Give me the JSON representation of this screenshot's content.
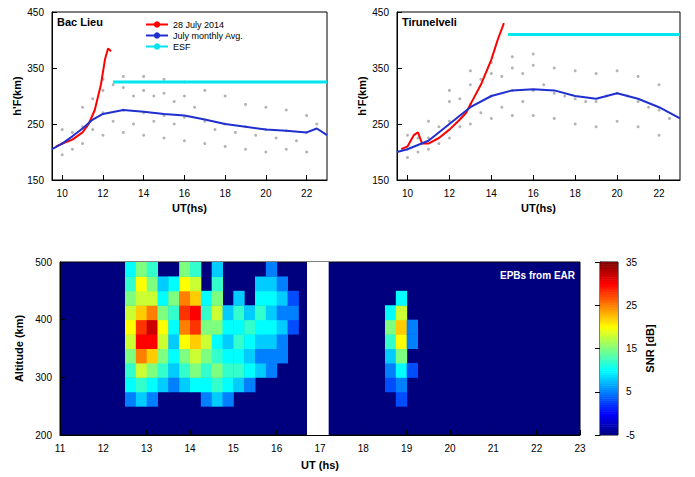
{
  "chart_data": [
    {
      "type": "line",
      "title": "Bac Lieu",
      "xlabel": "UT(hs)",
      "ylabel": "h'F(km)",
      "xlim": [
        9.5,
        23
      ],
      "xticks": [
        10,
        12,
        14,
        16,
        18,
        20,
        22
      ],
      "ylim": [
        150,
        450
      ],
      "yticks": [
        150,
        250,
        350,
        450
      ],
      "grid": false,
      "legend": "top",
      "series": [
        {
          "type": "scatter",
          "color": "#a0a0a0",
          "marker": "dot",
          "x": [
            10,
            10,
            10,
            10.5,
            10.5,
            11,
            11,
            11,
            11.5,
            11.5,
            12,
            12,
            12,
            12,
            12.5,
            12.5,
            13,
            13,
            13,
            13,
            13.5,
            13.5,
            14,
            14,
            14,
            14,
            14.5,
            14.5,
            15,
            15,
            15,
            15,
            15.5,
            15.5,
            16,
            16,
            16,
            16,
            16.5,
            17,
            17,
            17,
            17.5,
            18,
            18,
            18,
            18.5,
            19,
            19,
            19,
            19.5,
            20,
            20,
            20,
            20.5,
            21,
            21,
            21,
            21.5,
            22,
            22,
            22,
            22.5
          ],
          "values": [
            195,
            215,
            240,
            205,
            235,
            215,
            245,
            280,
            240,
            295,
            230,
            270,
            310,
            330,
            255,
            320,
            235,
            275,
            315,
            335,
            250,
            300,
            230,
            270,
            310,
            335,
            255,
            300,
            225,
            265,
            305,
            330,
            250,
            290,
            220,
            262,
            300,
            325,
            280,
            215,
            255,
            310,
            240,
            210,
            250,
            300,
            235,
            205,
            245,
            285,
            230,
            200,
            240,
            280,
            225,
            205,
            238,
            275,
            220,
            200,
            235,
            265,
            250
          ]
        },
        {
          "type": "line",
          "name": "28 July 2014",
          "color": "#ff0000",
          "line_style": "solid",
          "x": [
            9.7,
            10,
            10.5,
            11,
            11.3,
            11.6,
            11.9,
            12.1,
            12.25,
            12.4
          ],
          "values": [
            210,
            215,
            222,
            235,
            250,
            275,
            320,
            365,
            385,
            380
          ]
        },
        {
          "type": "line",
          "name": "July monthly Avg.",
          "color": "#1f2fd0",
          "line_style": "solid",
          "x": [
            9.5,
            10,
            10.5,
            11,
            11.5,
            12,
            13,
            14,
            15,
            16,
            17,
            18,
            19,
            20,
            21,
            22,
            22.5,
            23
          ],
          "values": [
            205,
            215,
            228,
            242,
            258,
            268,
            275,
            272,
            268,
            265,
            258,
            250,
            245,
            240,
            238,
            235,
            242,
            230
          ]
        },
        {
          "type": "line",
          "name": "ESF",
          "color": "#00e5ee",
          "line_style": "solid",
          "x": [
            12.5,
            23
          ],
          "values": [
            325,
            325
          ]
        }
      ]
    },
    {
      "type": "line",
      "title": "Tirunelveli",
      "xlabel": "UT(hs)",
      "ylabel": "h'F(km)",
      "xlim": [
        9.5,
        23
      ],
      "xticks": [
        10,
        12,
        14,
        16,
        18,
        20,
        22
      ],
      "ylim": [
        150,
        450
      ],
      "yticks": [
        150,
        250,
        350,
        450
      ],
      "grid": false,
      "series": [
        {
          "type": "scatter",
          "color": "#a0a0a0",
          "marker": "dot",
          "x": [
            10,
            10,
            10,
            10.5,
            10.5,
            11,
            11,
            11,
            11.5,
            11.5,
            12,
            12,
            12,
            12,
            12.5,
            12.5,
            13,
            13,
            13,
            13,
            13.5,
            13.5,
            14,
            14,
            14,
            14,
            14.5,
            14.5,
            15,
            15,
            15,
            15,
            15.5,
            15.5,
            16,
            16,
            16,
            16,
            16.5,
            17,
            17,
            17,
            17.5,
            18,
            18,
            18,
            18.5,
            19,
            19,
            19,
            19.5,
            20,
            20,
            20,
            20.5,
            21,
            21,
            21,
            21.5,
            22,
            22,
            22,
            22.5
          ],
          "values": [
            190,
            205,
            230,
            200,
            225,
            205,
            225,
            255,
            215,
            245,
            225,
            255,
            290,
            310,
            245,
            295,
            250,
            285,
            320,
            345,
            270,
            330,
            260,
            300,
            340,
            360,
            280,
            335,
            265,
            310,
            350,
            370,
            290,
            340,
            265,
            310,
            355,
            375,
            320,
            260,
            305,
            350,
            300,
            250,
            295,
            345,
            290,
            245,
            290,
            340,
            300,
            255,
            305,
            345,
            300,
            245,
            290,
            335,
            280,
            230,
            275,
            320,
            260
          ]
        },
        {
          "type": "line",
          "name": "28 July 2014",
          "color": "#ff0000",
          "line_style": "solid",
          "x": [
            9.7,
            10,
            10.3,
            10.5,
            10.7,
            11,
            11.5,
            12,
            12.5,
            12.8,
            13,
            13.5,
            14,
            14.3,
            14.6
          ],
          "values": [
            205,
            210,
            230,
            235,
            215,
            215,
            225,
            240,
            258,
            270,
            285,
            320,
            365,
            400,
            430
          ]
        },
        {
          "type": "line",
          "name": "July monthly Avg.",
          "color": "#1f2fd0",
          "line_style": "solid",
          "x": [
            9.5,
            10,
            11,
            12,
            13,
            14,
            15,
            16,
            17,
            18,
            19,
            20,
            21,
            22,
            23
          ],
          "values": [
            200,
            205,
            220,
            250,
            280,
            300,
            310,
            312,
            310,
            300,
            295,
            305,
            295,
            280,
            260
          ]
        },
        {
          "type": "line",
          "name": "ESF",
          "color": "#00e5ee",
          "line_style": "solid",
          "x": [
            14.8,
            23
          ],
          "values": [
            410,
            410
          ]
        }
      ]
    },
    {
      "type": "heatmap",
      "annotation": "EPBs from EAR",
      "xlabel": "UT (hs)",
      "ylabel": "Altitude (km)",
      "xlim": [
        11,
        23
      ],
      "xticks": [
        11,
        12,
        13,
        14,
        15,
        16,
        17,
        18,
        19,
        20,
        21,
        22,
        23
      ],
      "ylim": [
        200,
        500
      ],
      "yticks": [
        200,
        300,
        400,
        500
      ],
      "cell_size": [
        0.25,
        25
      ],
      "no_data": [
        16.7,
        17.2
      ],
      "cells": [
        [
          12.5,
          250,
          5
        ],
        [
          12.5,
          275,
          10
        ],
        [
          12.5,
          300,
          12
        ],
        [
          12.5,
          325,
          15
        ],
        [
          12.5,
          350,
          18
        ],
        [
          12.5,
          375,
          20
        ],
        [
          12.5,
          400,
          18
        ],
        [
          12.5,
          425,
          15
        ],
        [
          12.5,
          450,
          12
        ],
        [
          12.5,
          475,
          10
        ],
        [
          12.75,
          250,
          8
        ],
        [
          12.75,
          275,
          12
        ],
        [
          12.75,
          300,
          18
        ],
        [
          12.75,
          325,
          25
        ],
        [
          12.75,
          350,
          30
        ],
        [
          12.75,
          375,
          28
        ],
        [
          12.75,
          400,
          22
        ],
        [
          12.75,
          425,
          18
        ],
        [
          12.75,
          450,
          20
        ],
        [
          12.75,
          475,
          15
        ],
        [
          13,
          250,
          5
        ],
        [
          13,
          275,
          10
        ],
        [
          13,
          300,
          15
        ],
        [
          13,
          325,
          22
        ],
        [
          13,
          350,
          30
        ],
        [
          13,
          375,
          32
        ],
        [
          13,
          400,
          25
        ],
        [
          13,
          425,
          18
        ],
        [
          13,
          450,
          15
        ],
        [
          13,
          475,
          12
        ],
        [
          13.25,
          275,
          8
        ],
        [
          13.25,
          300,
          12
        ],
        [
          13.25,
          325,
          15
        ],
        [
          13.25,
          350,
          18
        ],
        [
          13.25,
          375,
          20
        ],
        [
          13.25,
          400,
          15
        ],
        [
          13.25,
          425,
          10
        ],
        [
          13.25,
          450,
          8
        ],
        [
          13.5,
          275,
          5
        ],
        [
          13.5,
          300,
          8
        ],
        [
          13.5,
          325,
          10
        ],
        [
          13.5,
          350,
          8
        ],
        [
          13.5,
          375,
          10
        ],
        [
          13.5,
          400,
          12
        ],
        [
          13.5,
          425,
          15
        ],
        [
          13.5,
          450,
          10
        ],
        [
          13.75,
          275,
          8
        ],
        [
          13.75,
          300,
          12
        ],
        [
          13.75,
          325,
          15
        ],
        [
          13.75,
          350,
          20
        ],
        [
          13.75,
          375,
          25
        ],
        [
          13.75,
          400,
          28
        ],
        [
          13.75,
          425,
          25
        ],
        [
          13.75,
          450,
          20
        ],
        [
          13.75,
          475,
          15
        ],
        [
          14,
          275,
          10
        ],
        [
          14,
          300,
          15
        ],
        [
          14,
          325,
          18
        ],
        [
          14,
          350,
          22
        ],
        [
          14,
          375,
          28
        ],
        [
          14,
          400,
          30
        ],
        [
          14,
          425,
          22
        ],
        [
          14,
          450,
          18
        ],
        [
          14,
          475,
          12
        ],
        [
          14.25,
          250,
          5
        ],
        [
          14.25,
          275,
          10
        ],
        [
          14.25,
          300,
          12
        ],
        [
          14.25,
          325,
          15
        ],
        [
          14.25,
          350,
          18
        ],
        [
          14.25,
          375,
          15
        ],
        [
          14.25,
          400,
          12
        ],
        [
          14.25,
          425,
          10
        ],
        [
          14.5,
          250,
          8
        ],
        [
          14.5,
          275,
          12
        ],
        [
          14.5,
          300,
          15
        ],
        [
          14.5,
          325,
          12
        ],
        [
          14.5,
          350,
          10
        ],
        [
          14.5,
          375,
          15
        ],
        [
          14.5,
          400,
          18
        ],
        [
          14.5,
          425,
          15
        ],
        [
          14.5,
          450,
          12
        ],
        [
          14.5,
          475,
          8
        ],
        [
          14.75,
          250,
          5
        ],
        [
          14.75,
          275,
          10
        ],
        [
          14.75,
          300,
          12
        ],
        [
          14.75,
          325,
          10
        ],
        [
          14.75,
          350,
          8
        ],
        [
          14.75,
          375,
          10
        ],
        [
          14.75,
          400,
          8
        ],
        [
          15,
          275,
          8
        ],
        [
          15,
          300,
          12
        ],
        [
          15,
          325,
          10
        ],
        [
          15,
          350,
          12
        ],
        [
          15,
          375,
          10
        ],
        [
          15,
          400,
          12
        ],
        [
          15,
          425,
          8
        ],
        [
          15.25,
          275,
          5
        ],
        [
          15.25,
          300,
          10
        ],
        [
          15.25,
          325,
          8
        ],
        [
          15.25,
          350,
          10
        ],
        [
          15.25,
          375,
          12
        ],
        [
          15.25,
          400,
          8
        ],
        [
          15.5,
          300,
          8
        ],
        [
          15.5,
          325,
          5
        ],
        [
          15.5,
          350,
          8
        ],
        [
          15.5,
          375,
          10
        ],
        [
          15.5,
          400,
          12
        ],
        [
          15.5,
          425,
          10
        ],
        [
          15.5,
          450,
          8
        ],
        [
          15.75,
          300,
          5
        ],
        [
          15.75,
          325,
          5
        ],
        [
          15.75,
          350,
          8
        ],
        [
          15.75,
          375,
          10
        ],
        [
          15.75,
          400,
          8
        ],
        [
          15.75,
          425,
          10
        ],
        [
          15.75,
          450,
          8
        ],
        [
          15.75,
          475,
          5
        ],
        [
          16,
          325,
          5
        ],
        [
          16,
          350,
          5
        ],
        [
          16,
          375,
          8
        ],
        [
          16,
          400,
          5
        ],
        [
          16,
          425,
          8
        ],
        [
          16,
          450,
          5
        ],
        [
          16.25,
          375,
          3
        ],
        [
          16.25,
          400,
          5
        ],
        [
          16.25,
          425,
          3
        ],
        [
          18.5,
          275,
          3
        ],
        [
          18.5,
          300,
          5
        ],
        [
          18.5,
          325,
          8
        ],
        [
          18.5,
          350,
          12
        ],
        [
          18.5,
          375,
          15
        ],
        [
          18.5,
          400,
          10
        ],
        [
          18.75,
          250,
          3
        ],
        [
          18.75,
          275,
          5
        ],
        [
          18.75,
          300,
          10
        ],
        [
          18.75,
          325,
          15
        ],
        [
          18.75,
          350,
          20
        ],
        [
          18.75,
          375,
          22
        ],
        [
          18.75,
          400,
          18
        ],
        [
          18.75,
          425,
          10
        ],
        [
          19,
          300,
          3
        ],
        [
          19,
          350,
          5
        ],
        [
          19,
          375,
          5
        ]
      ],
      "colorbar": {
        "label": "SNR [dB]",
        "range": [
          -5,
          35
        ],
        "ticks": [
          -5,
          5,
          15,
          25,
          35
        ],
        "colors": [
          "#00007f",
          "#0000ff",
          "#007fff",
          "#00ffff",
          "#7fff7f",
          "#ffff00",
          "#ff7f00",
          "#ff0000",
          "#7f0000"
        ]
      }
    }
  ]
}
